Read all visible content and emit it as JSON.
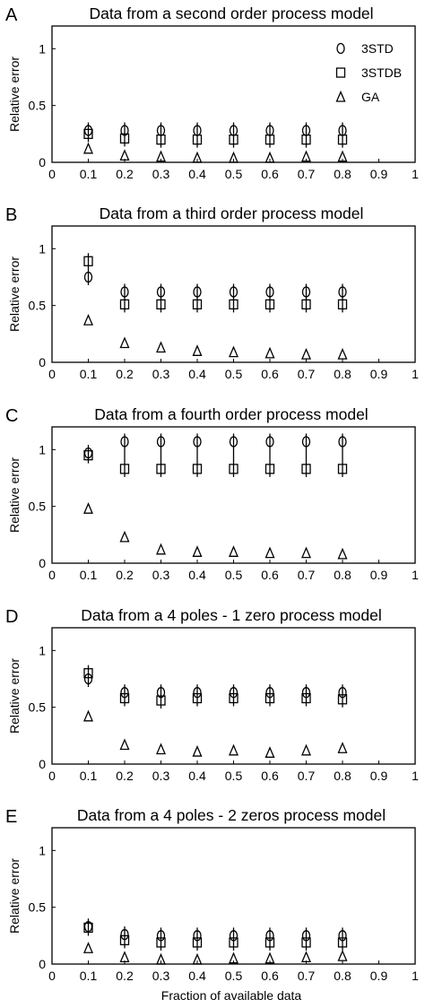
{
  "figure": {
    "x_axis_label": "Fraction of available data",
    "legend": [
      "3STD",
      "3STDB",
      "GA"
    ]
  },
  "chart_data": [
    {
      "type": "scatter",
      "panel_letter": "A",
      "title": "Data from a second order process model",
      "ylabel": "Relative error",
      "xlim": [
        0,
        1
      ],
      "ylim": [
        0,
        1.2
      ],
      "xticks": [
        "0",
        "0.1",
        "0.2",
        "0.3",
        "0.4",
        "0.5",
        "0.6",
        "0.7",
        "0.8",
        "0.9",
        "1"
      ],
      "yticks": [
        "0",
        "0.5",
        "1"
      ],
      "legend_position": "top-right",
      "x": [
        0.1,
        0.2,
        0.3,
        0.4,
        0.5,
        0.6,
        0.7,
        0.8
      ],
      "series": [
        {
          "name": "3STD",
          "marker": "circle",
          "values": [
            0.28,
            0.28,
            0.28,
            0.28,
            0.28,
            0.28,
            0.28,
            0.28
          ]
        },
        {
          "name": "3STDB",
          "marker": "square",
          "values": [
            0.25,
            0.21,
            0.2,
            0.2,
            0.2,
            0.2,
            0.2,
            0.2
          ]
        },
        {
          "name": "GA",
          "marker": "triangle",
          "values": [
            0.12,
            0.06,
            0.05,
            0.04,
            0.04,
            0.04,
            0.05,
            0.05
          ]
        }
      ]
    },
    {
      "type": "scatter",
      "panel_letter": "B",
      "title": "Data from a third order process model",
      "ylabel": "Relative error",
      "xlim": [
        0,
        1
      ],
      "ylim": [
        0,
        1.2
      ],
      "xticks": [
        "0",
        "0.1",
        "0.2",
        "0.3",
        "0.4",
        "0.5",
        "0.6",
        "0.7",
        "0.8",
        "0.9",
        "1"
      ],
      "yticks": [
        "0",
        "0.5",
        "1"
      ],
      "x": [
        0.1,
        0.2,
        0.3,
        0.4,
        0.5,
        0.6,
        0.7,
        0.8
      ],
      "series": [
        {
          "name": "3STD",
          "marker": "circle",
          "values": [
            0.75,
            0.62,
            0.62,
            0.62,
            0.62,
            0.62,
            0.62,
            0.62
          ]
        },
        {
          "name": "3STDB",
          "marker": "square",
          "values": [
            0.89,
            0.51,
            0.51,
            0.51,
            0.51,
            0.51,
            0.51,
            0.51
          ]
        },
        {
          "name": "GA",
          "marker": "triangle",
          "values": [
            0.37,
            0.17,
            0.13,
            0.1,
            0.09,
            0.08,
            0.07,
            0.07
          ]
        }
      ]
    },
    {
      "type": "scatter",
      "panel_letter": "C",
      "title": "Data from a fourth order process model",
      "ylabel": "Relative error",
      "xlim": [
        0,
        1
      ],
      "ylim": [
        0,
        1.2
      ],
      "xticks": [
        "0",
        "0.1",
        "0.2",
        "0.3",
        "0.4",
        "0.5",
        "0.6",
        "0.7",
        "0.8",
        "0.9",
        "1"
      ],
      "yticks": [
        "0",
        "0.5",
        "1"
      ],
      "x": [
        0.1,
        0.2,
        0.3,
        0.4,
        0.5,
        0.6,
        0.7,
        0.8
      ],
      "series": [
        {
          "name": "3STD",
          "marker": "circle",
          "values": [
            0.97,
            1.07,
            1.07,
            1.07,
            1.07,
            1.07,
            1.07,
            1.07
          ]
        },
        {
          "name": "3STDB",
          "marker": "square",
          "values": [
            0.95,
            0.83,
            0.83,
            0.83,
            0.83,
            0.83,
            0.83,
            0.83
          ]
        },
        {
          "name": "GA",
          "marker": "triangle",
          "values": [
            0.48,
            0.23,
            0.12,
            0.1,
            0.1,
            0.09,
            0.09,
            0.08
          ]
        }
      ]
    },
    {
      "type": "scatter",
      "panel_letter": "D",
      "title": "Data from a 4 poles - 1 zero process model",
      "ylabel": "Relative error",
      "xlim": [
        0,
        1
      ],
      "ylim": [
        0,
        1.2
      ],
      "xticks": [
        "0",
        "0.1",
        "0.2",
        "0.3",
        "0.4",
        "0.5",
        "0.6",
        "0.7",
        "0.8",
        "0.9",
        "1"
      ],
      "yticks": [
        "0",
        "0.5",
        "1"
      ],
      "x": [
        0.1,
        0.2,
        0.3,
        0.4,
        0.5,
        0.6,
        0.7,
        0.8
      ],
      "series": [
        {
          "name": "3STD",
          "marker": "circle",
          "values": [
            0.75,
            0.63,
            0.63,
            0.63,
            0.63,
            0.63,
            0.63,
            0.63
          ]
        },
        {
          "name": "3STDB",
          "marker": "square",
          "values": [
            0.8,
            0.58,
            0.56,
            0.58,
            0.58,
            0.58,
            0.58,
            0.57
          ]
        },
        {
          "name": "GA",
          "marker": "triangle",
          "values": [
            0.42,
            0.17,
            0.13,
            0.11,
            0.12,
            0.1,
            0.12,
            0.14
          ]
        }
      ]
    },
    {
      "type": "scatter",
      "panel_letter": "E",
      "title": "Data from a 4 poles - 2 zeros process model",
      "ylabel": "Relative error",
      "xlabel": "Fraction of available data",
      "xlim": [
        0,
        1
      ],
      "ylim": [
        0,
        1.2
      ],
      "xticks": [
        "0",
        "0.1",
        "0.2",
        "0.3",
        "0.4",
        "0.5",
        "0.6",
        "0.7",
        "0.8",
        "0.9",
        "1"
      ],
      "yticks": [
        "0",
        "0.5",
        "1"
      ],
      "x": [
        0.1,
        0.2,
        0.3,
        0.4,
        0.5,
        0.6,
        0.7,
        0.8
      ],
      "series": [
        {
          "name": "3STD",
          "marker": "circle",
          "values": [
            0.33,
            0.26,
            0.25,
            0.25,
            0.25,
            0.25,
            0.25,
            0.25
          ]
        },
        {
          "name": "3STDB",
          "marker": "square",
          "values": [
            0.32,
            0.21,
            0.19,
            0.19,
            0.19,
            0.19,
            0.19,
            0.19
          ]
        },
        {
          "name": "GA",
          "marker": "triangle",
          "values": [
            0.14,
            0.06,
            0.04,
            0.04,
            0.05,
            0.05,
            0.06,
            0.07
          ]
        }
      ]
    }
  ]
}
